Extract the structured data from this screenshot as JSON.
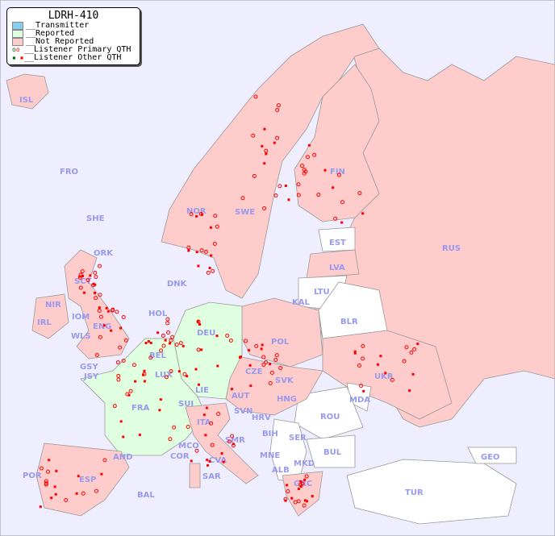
{
  "legend": {
    "title": "LDRH-410",
    "items": [
      {
        "label": "__Transmitter",
        "color": "#88ccee"
      },
      {
        "label": "__Reported",
        "color": "#e0ffe0"
      },
      {
        "label": "__Not Reported",
        "color": "#ffcccc"
      },
      {
        "label": "__Listener Primary QTH",
        "colors": [
          "#006600",
          "#ff0000"
        ]
      },
      {
        "label": "__Listener Other QTH",
        "colors": [
          "#006600",
          "#ff0000"
        ]
      }
    ]
  },
  "colors": {
    "sea": "#eeeeff",
    "reported": "#e0ffe0",
    "not_reported": "#ffcccc",
    "no_data": "#ffffff",
    "label": "#9999ee",
    "marker": "#ff0000"
  },
  "countries": {
    "ISL": "ISL",
    "FRO": "FRO",
    "SHE": "SHE",
    "ORK": "ORK",
    "NOR": "NOR",
    "SWE": "SWE",
    "FIN": "FIN",
    "EST": "EST",
    "LVA": "LVA",
    "LTU": "LTU",
    "KAL": "KAL",
    "RUS": "RUS",
    "BLR": "BLR",
    "UKR": "UKR",
    "MDA": "MDA",
    "ROU": "ROU",
    "BUL": "BUL",
    "TUR": "TUR",
    "GEO": "GEO",
    "DNK": "DNK",
    "HOL": "HOL",
    "DEU": "DEU",
    "POL": "POL",
    "CZE": "CZE",
    "SVK": "SVK",
    "HNG": "HNG",
    "AUT": "AUT",
    "SUI": "SUI",
    "LIE": "LIE",
    "LUX": "LUX",
    "BEL": "BEL",
    "FRA": "FRA",
    "GSY": "GSY",
    "JSY": "JSY",
    "IRL": "IRL",
    "NIR": "NIR",
    "SCT": "SCT",
    "IOM": "IOM",
    "ENG": "ENG",
    "WLS": "WLS",
    "ITA": "ITA",
    "SVN": "SVN",
    "HRV": "HRV",
    "BIH": "BIH",
    "SER": "SER",
    "MNE": "MNE",
    "ALB": "ALB",
    "MKD": "MKD",
    "GRC": "GRC",
    "SMR": "SMR",
    "MCO": "MCO",
    "COR": "COR",
    "SAR": "SAR",
    "CVA": "CVA",
    "AND": "AND",
    "ESP": "ESP",
    "POR": "POR",
    "BAL": "BAL"
  }
}
